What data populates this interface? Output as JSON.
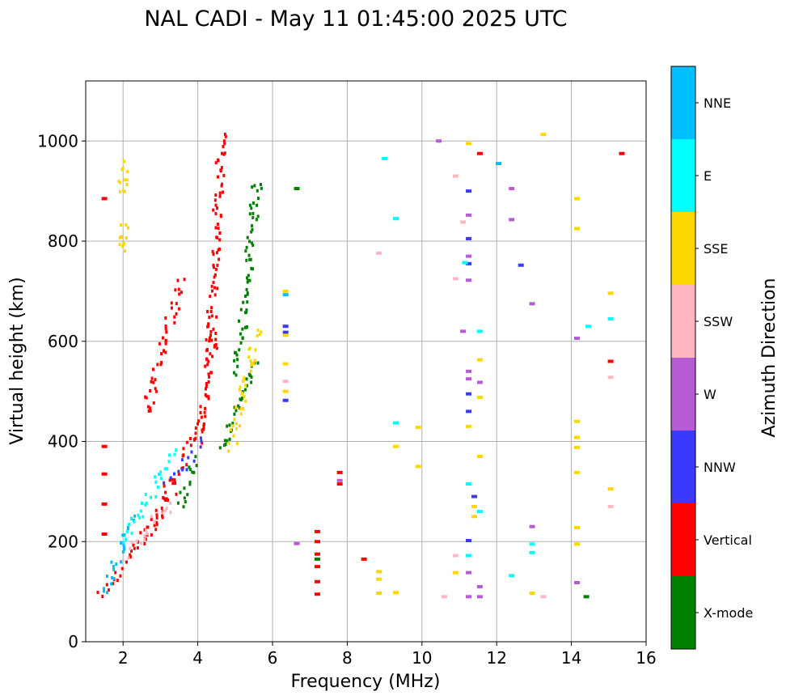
{
  "chart_data": {
    "type": "scatter",
    "title": "NAL CADI - May 11 01:45:00 2025 UTC",
    "xlabel": "Frequency (MHz)",
    "ylabel": "Virtual height (km)",
    "xlim": [
      1,
      16
    ],
    "ylim": [
      0,
      1120
    ],
    "x_ticks": [
      2,
      4,
      6,
      8,
      10,
      12,
      14,
      16
    ],
    "y_ticks": [
      0,
      200,
      400,
      600,
      800,
      1000
    ],
    "grid": true,
    "colorbar": {
      "label": "Azimuth Direction",
      "entries": [
        {
          "name": "X-mode",
          "color": "#008000"
        },
        {
          "name": "Vertical",
          "color": "#ff0000"
        },
        {
          "name": "NNW",
          "color": "#3a3aff"
        },
        {
          "name": "W",
          "color": "#b85ad6"
        },
        {
          "name": "SSW",
          "color": "#ffb6c1"
        },
        {
          "name": "SSE",
          "color": "#ffd700"
        },
        {
          "name": "E",
          "color": "#00ffff"
        },
        {
          "name": "NNE",
          "color": "#00bfff"
        }
      ]
    },
    "segments": [
      {
        "dir": "Vertical",
        "x0": 1.45,
        "x1": 2.9,
        "y0": 90,
        "y1": 260
      },
      {
        "dir": "Vertical",
        "x0": 2.6,
        "x1": 3.3,
        "y0": 200,
        "y1": 300
      },
      {
        "dir": "Vertical",
        "x0": 3.1,
        "x1": 4.2,
        "y0": 290,
        "y1": 440
      },
      {
        "dir": "Vertical",
        "x0": 4.0,
        "x1": 4.45,
        "y0": 400,
        "y1": 620
      },
      {
        "dir": "Vertical",
        "x0": 4.3,
        "x1": 4.65,
        "y0": 560,
        "y1": 1015
      },
      {
        "dir": "Vertical",
        "x0": 2.6,
        "x1": 3.55,
        "y0": 455,
        "y1": 720
      },
      {
        "dir": "X-mode",
        "x0": 4.6,
        "x1": 5.55,
        "y0": 380,
        "y1": 560
      },
      {
        "dir": "X-mode",
        "x0": 5.05,
        "x1": 5.6,
        "y0": 540,
        "y1": 920
      },
      {
        "dir": "X-mode",
        "x0": 3.5,
        "x1": 3.95,
        "y0": 270,
        "y1": 360
      },
      {
        "dir": "NNE",
        "x0": 1.5,
        "x1": 2.3,
        "y0": 100,
        "y1": 250
      },
      {
        "dir": "E",
        "x0": 2.0,
        "x1": 3.4,
        "y0": 200,
        "y1": 380
      },
      {
        "dir": "SSW",
        "x0": 2.1,
        "x1": 3.3,
        "y0": 170,
        "y1": 280
      },
      {
        "dir": "SSE",
        "x0": 4.9,
        "x1": 5.6,
        "y0": 390,
        "y1": 620
      },
      {
        "dir": "NNW",
        "x0": 3.2,
        "x1": 4.2,
        "y0": 320,
        "y1": 400
      },
      {
        "dir": "SSE",
        "x0": 1.95,
        "x1": 2.05,
        "y0": 900,
        "y1": 950
      },
      {
        "dir": "SSE",
        "x0": 1.95,
        "x1": 2.05,
        "y0": 785,
        "y1": 830
      }
    ],
    "points": [
      {
        "dir": "Vertical",
        "x": 1.5,
        "y": 390
      },
      {
        "dir": "Vertical",
        "x": 1.5,
        "y": 335
      },
      {
        "dir": "Vertical",
        "x": 1.5,
        "y": 275
      },
      {
        "dir": "Vertical",
        "x": 1.5,
        "y": 215
      },
      {
        "dir": "Vertical",
        "x": 1.5,
        "y": 885
      },
      {
        "dir": "Vertical",
        "x": 7.2,
        "y": 220
      },
      {
        "dir": "Vertical",
        "x": 7.2,
        "y": 200
      },
      {
        "dir": "Vertical",
        "x": 7.2,
        "y": 175
      },
      {
        "dir": "Vertical",
        "x": 7.2,
        "y": 150
      },
      {
        "dir": "Vertical",
        "x": 7.2,
        "y": 120
      },
      {
        "dir": "Vertical",
        "x": 7.2,
        "y": 95
      },
      {
        "dir": "Vertical",
        "x": 7.8,
        "y": 338
      },
      {
        "dir": "Vertical",
        "x": 7.8,
        "y": 315
      },
      {
        "dir": "Vertical",
        "x": 8.45,
        "y": 165
      },
      {
        "dir": "Vertical",
        "x": 11.55,
        "y": 975
      },
      {
        "dir": "Vertical",
        "x": 15.05,
        "y": 560
      },
      {
        "dir": "Vertical",
        "x": 15.35,
        "y": 975
      },
      {
        "dir": "X-mode",
        "x": 6.65,
        "y": 905
      },
      {
        "dir": "X-mode",
        "x": 14.4,
        "y": 90
      },
      {
        "dir": "X-mode",
        "x": 7.2,
        "y": 165
      },
      {
        "dir": "NNW",
        "x": 6.35,
        "y": 630
      },
      {
        "dir": "NNW",
        "x": 6.35,
        "y": 618
      },
      {
        "dir": "NNW",
        "x": 6.35,
        "y": 482
      },
      {
        "dir": "NNW",
        "x": 11.25,
        "y": 900
      },
      {
        "dir": "NNW",
        "x": 11.25,
        "y": 805
      },
      {
        "dir": "NNW",
        "x": 11.25,
        "y": 755
      },
      {
        "dir": "NNW",
        "x": 11.25,
        "y": 495
      },
      {
        "dir": "NNW",
        "x": 11.25,
        "y": 460
      },
      {
        "dir": "NNW",
        "x": 11.25,
        "y": 202
      },
      {
        "dir": "NNW",
        "x": 11.4,
        "y": 290
      },
      {
        "dir": "NNW",
        "x": 12.65,
        "y": 752
      },
      {
        "dir": "W",
        "x": 10.45,
        "y": 1000
      },
      {
        "dir": "W",
        "x": 11.25,
        "y": 770
      },
      {
        "dir": "W",
        "x": 11.25,
        "y": 722
      },
      {
        "dir": "W",
        "x": 11.1,
        "y": 620
      },
      {
        "dir": "W",
        "x": 11.25,
        "y": 540
      },
      {
        "dir": "W",
        "x": 11.25,
        "y": 525
      },
      {
        "dir": "W",
        "x": 11.55,
        "y": 518
      },
      {
        "dir": "W",
        "x": 11.25,
        "y": 138
      },
      {
        "dir": "W",
        "x": 11.55,
        "y": 110
      },
      {
        "dir": "W",
        "x": 11.25,
        "y": 90
      },
      {
        "dir": "W",
        "x": 11.55,
        "y": 90
      },
      {
        "dir": "W",
        "x": 12.4,
        "y": 905
      },
      {
        "dir": "W",
        "x": 12.4,
        "y": 843
      },
      {
        "dir": "W",
        "x": 12.95,
        "y": 675
      },
      {
        "dir": "W",
        "x": 12.95,
        "y": 230
      },
      {
        "dir": "W",
        "x": 14.15,
        "y": 606
      },
      {
        "dir": "W",
        "x": 14.15,
        "y": 118
      },
      {
        "dir": "W",
        "x": 6.65,
        "y": 196
      },
      {
        "dir": "W",
        "x": 7.8,
        "y": 322
      },
      {
        "dir": "W",
        "x": 11.25,
        "y": 852
      },
      {
        "dir": "SSW",
        "x": 8.85,
        "y": 776
      },
      {
        "dir": "SSW",
        "x": 10.9,
        "y": 930
      },
      {
        "dir": "SSW",
        "x": 10.9,
        "y": 725
      },
      {
        "dir": "SSW",
        "x": 11.1,
        "y": 838
      },
      {
        "dir": "SSW",
        "x": 10.9,
        "y": 172
      },
      {
        "dir": "SSW",
        "x": 10.6,
        "y": 90
      },
      {
        "dir": "SSW",
        "x": 13.25,
        "y": 90
      },
      {
        "dir": "SSW",
        "x": 15.05,
        "y": 528
      },
      {
        "dir": "SSW",
        "x": 15.05,
        "y": 270
      },
      {
        "dir": "SSW",
        "x": 6.35,
        "y": 520
      },
      {
        "dir": "SSE",
        "x": 6.35,
        "y": 700
      },
      {
        "dir": "SSE",
        "x": 6.35,
        "y": 612
      },
      {
        "dir": "SSE",
        "x": 6.35,
        "y": 555
      },
      {
        "dir": "SSE",
        "x": 6.35,
        "y": 500
      },
      {
        "dir": "SSE",
        "x": 9.3,
        "y": 390
      },
      {
        "dir": "SSE",
        "x": 9.9,
        "y": 428
      },
      {
        "dir": "SSE",
        "x": 9.9,
        "y": 350
      },
      {
        "dir": "SSE",
        "x": 8.85,
        "y": 140
      },
      {
        "dir": "SSE",
        "x": 8.85,
        "y": 125
      },
      {
        "dir": "SSE",
        "x": 8.85,
        "y": 97
      },
      {
        "dir": "SSE",
        "x": 9.3,
        "y": 98
      },
      {
        "dir": "SSE",
        "x": 10.9,
        "y": 138
      },
      {
        "dir": "SSE",
        "x": 11.25,
        "y": 995
      },
      {
        "dir": "SSE",
        "x": 11.25,
        "y": 430
      },
      {
        "dir": "SSE",
        "x": 11.4,
        "y": 270
      },
      {
        "dir": "SSE",
        "x": 11.4,
        "y": 250
      },
      {
        "dir": "SSE",
        "x": 11.55,
        "y": 563
      },
      {
        "dir": "SSE",
        "x": 11.55,
        "y": 488
      },
      {
        "dir": "SSE",
        "x": 11.55,
        "y": 370
      },
      {
        "dir": "SSE",
        "x": 13.25,
        "y": 1013
      },
      {
        "dir": "SSE",
        "x": 12.95,
        "y": 97
      },
      {
        "dir": "SSE",
        "x": 14.15,
        "y": 885
      },
      {
        "dir": "SSE",
        "x": 14.15,
        "y": 825
      },
      {
        "dir": "SSE",
        "x": 14.15,
        "y": 440
      },
      {
        "dir": "SSE",
        "x": 14.15,
        "y": 408
      },
      {
        "dir": "SSE",
        "x": 14.15,
        "y": 388
      },
      {
        "dir": "SSE",
        "x": 14.15,
        "y": 338
      },
      {
        "dir": "SSE",
        "x": 14.15,
        "y": 228
      },
      {
        "dir": "SSE",
        "x": 14.15,
        "y": 195
      },
      {
        "dir": "SSE",
        "x": 15.05,
        "y": 696
      },
      {
        "dir": "SSE",
        "x": 15.05,
        "y": 305
      },
      {
        "dir": "SSE",
        "x": 15.85,
        "y": 558
      },
      {
        "dir": "E",
        "x": 9.0,
        "y": 965
      },
      {
        "dir": "E",
        "x": 9.3,
        "y": 845
      },
      {
        "dir": "E",
        "x": 9.3,
        "y": 437
      },
      {
        "dir": "E",
        "x": 11.15,
        "y": 757
      },
      {
        "dir": "E",
        "x": 11.55,
        "y": 620
      },
      {
        "dir": "E",
        "x": 11.25,
        "y": 315
      },
      {
        "dir": "E",
        "x": 11.25,
        "y": 172
      },
      {
        "dir": "E",
        "x": 11.55,
        "y": 260
      },
      {
        "dir": "E",
        "x": 12.4,
        "y": 132
      },
      {
        "dir": "E",
        "x": 12.95,
        "y": 195
      },
      {
        "dir": "E",
        "x": 12.95,
        "y": 178
      },
      {
        "dir": "E",
        "x": 14.45,
        "y": 630
      },
      {
        "dir": "E",
        "x": 15.05,
        "y": 645
      },
      {
        "dir": "NNE",
        "x": 12.05,
        "y": 955
      },
      {
        "dir": "NNE",
        "x": 6.35,
        "y": 693
      }
    ]
  }
}
